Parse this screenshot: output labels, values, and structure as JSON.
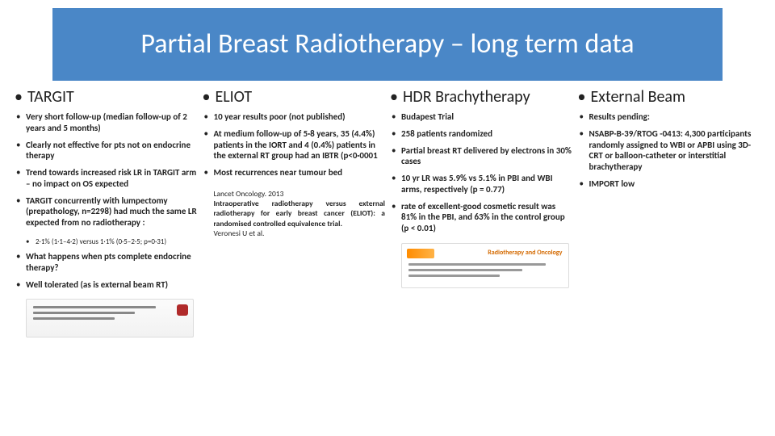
{
  "title_bar": {
    "background": "#4a87c7",
    "text_color": "#ffffff"
  },
  "title": "Partial Breast Radiotherapy – long term data",
  "columns": {
    "targit": {
      "heading": "TARGIT",
      "bullets": [
        "Very short follow-up (median follow-up of 2 years and 5 months)",
        "Clearly not effective for pts not on endocrine therapy",
        "Trend towards increased risk LR in TARGIT arm – no impact on OS expected",
        "TARGIT concurrently with lumpectomy (prepathology, n=2298) had much the same LR expected from no radiotherapy :"
      ],
      "subbullet": "2·1% (1·1–4·2) versus 1·1% (0·5–2·5; p=0·31)",
      "bullets2": [
        "What happens when pts complete endocrine therapy?",
        "Well tolerated (as is external beam RT)"
      ]
    },
    "eliot": {
      "heading": "ELIOT",
      "bullets": [
        "10 year results poor (not published)",
        "At medium follow-up of 5·8 years, 35 (4.4%) patients in the IORT and 4 (0.4%) patients in the external RT group had an IBTR (p<0·0001",
        "Most recurrences near tumour bed"
      ],
      "citation_parts": {
        "line1": "Lancet Oncology. 2013",
        "bold": "Intraoperative radiotherapy versus external radiotherapy for early breast cancer (ELIOT): a randomised controlled equivalence trial.",
        "line3": "Veronesi U et al."
      }
    },
    "hdr": {
      "heading": "HDR Brachytherapy",
      "bullets": [
        "Budapest Trial",
        "258 patients randomized",
        "Partial breast RT delivered by electrons in 30% cases",
        "10 yr LR was 5.9% vs 5.1% in PBI and WBI arms, respectively (p = 0.77)",
        "rate of excellent-good cosmetic result was 81% in the PBI, and 63% in the control group (p < 0.01)"
      ],
      "journal_label": "Radiotherapy and Oncology"
    },
    "ext": {
      "heading": "External Beam",
      "bullets": [
        "Results pending:",
        "NSABP-B-39/RTOG -0413: 4,300 participants randomly assigned to WBI or APBI using 3D-CRT or balloon-catheter or interstitial brachytherapy",
        "IMPORT low"
      ]
    }
  }
}
